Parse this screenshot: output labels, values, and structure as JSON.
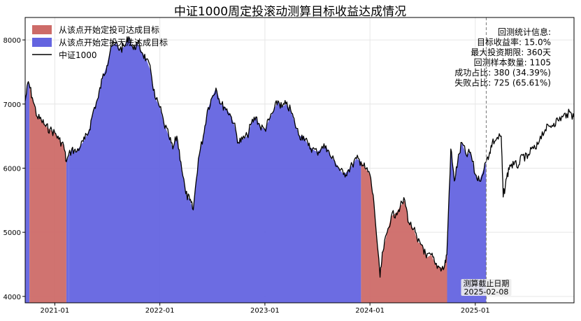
{
  "chart_data": {
    "type": "area",
    "title": "中证1000周定投滚动测算目标收益达成情况",
    "xlabel": "",
    "ylabel": "",
    "ylim": [
      3900,
      8350
    ],
    "xlim": [
      "2020-09-20",
      "2025-12-10"
    ],
    "x_ticks": [
      "2021-01",
      "2022-01",
      "2023-01",
      "2024-01",
      "2025-01"
    ],
    "y_ticks": [
      4000,
      5000,
      6000,
      7000,
      8000
    ],
    "grid": true,
    "legend": {
      "placement": "top-left",
      "items": [
        {
          "label": "从该点开始定投可达成目标",
          "color": "#cd6b68",
          "kind": "patch"
        },
        {
          "label": "从该点开始定投无法达成目标",
          "color": "#6464e0",
          "kind": "patch"
        },
        {
          "label": "中证1000",
          "color": "#000000",
          "kind": "line"
        }
      ]
    },
    "info_box": {
      "lines": [
        "回测统计信息:",
        "目标收益率: 15.0%",
        "最大投资期限: 360天",
        "回测样本数量: 1105",
        "成功占比: 380 (34.39%)",
        "失败占比: 725 (65.61%)"
      ]
    },
    "cutoff": {
      "date": "2025-02-08",
      "label": "测算截止日期",
      "date_label": "2025-02-08"
    },
    "colors": {
      "success": "#cd6b68",
      "fail": "#6464e0",
      "line": "#000000"
    },
    "fill_regions": [
      {
        "start": "2020-09-20",
        "end": "2020-10-05",
        "result": "fail"
      },
      {
        "start": "2020-10-05",
        "end": "2021-02-10",
        "result": "success"
      },
      {
        "start": "2021-02-10",
        "end": "2021-02-18",
        "result": "fail"
      },
      {
        "start": "2021-02-18",
        "end": "2023-12-01",
        "result": "fail"
      },
      {
        "start": "2023-12-01",
        "end": "2024-09-25",
        "result": "success"
      },
      {
        "start": "2024-09-25",
        "end": "2025-02-08",
        "result": "fail"
      }
    ],
    "series": [
      {
        "name": "中证1000",
        "x": [
          "2020-09-20",
          "2020-10-01",
          "2020-10-15",
          "2020-11-01",
          "2020-11-15",
          "2020-12-01",
          "2020-12-15",
          "2021-01-01",
          "2021-01-15",
          "2021-02-01",
          "2021-02-10",
          "2021-03-01",
          "2021-03-15",
          "2021-04-01",
          "2021-04-15",
          "2021-05-01",
          "2021-05-15",
          "2021-06-01",
          "2021-06-15",
          "2021-07-01",
          "2021-07-15",
          "2021-08-01",
          "2021-08-15",
          "2021-09-01",
          "2021-09-15",
          "2021-10-01",
          "2021-10-15",
          "2021-11-01",
          "2021-11-15",
          "2021-12-01",
          "2021-12-15",
          "2022-01-01",
          "2022-01-15",
          "2022-02-01",
          "2022-02-15",
          "2022-03-01",
          "2022-03-15",
          "2022-04-01",
          "2022-04-15",
          "2022-04-27",
          "2022-05-15",
          "2022-06-01",
          "2022-06-15",
          "2022-07-01",
          "2022-07-15",
          "2022-08-01",
          "2022-08-15",
          "2022-09-01",
          "2022-09-15",
          "2022-10-01",
          "2022-10-15",
          "2022-11-01",
          "2022-11-15",
          "2022-12-01",
          "2022-12-15",
          "2023-01-01",
          "2023-01-15",
          "2023-02-01",
          "2023-02-15",
          "2023-03-01",
          "2023-03-15",
          "2023-04-01",
          "2023-04-15",
          "2023-05-01",
          "2023-05-15",
          "2023-06-01",
          "2023-06-15",
          "2023-07-01",
          "2023-07-15",
          "2023-08-01",
          "2023-08-15",
          "2023-09-01",
          "2023-09-15",
          "2023-10-01",
          "2023-10-15",
          "2023-11-01",
          "2023-11-15",
          "2023-12-01",
          "2023-12-15",
          "2024-01-01",
          "2024-01-15",
          "2024-02-05",
          "2024-02-15",
          "2024-03-01",
          "2024-03-15",
          "2024-04-01",
          "2024-04-15",
          "2024-05-01",
          "2024-05-15",
          "2024-06-01",
          "2024-06-15",
          "2024-07-01",
          "2024-07-15",
          "2024-08-01",
          "2024-08-15",
          "2024-09-01",
          "2024-09-15",
          "2024-09-24",
          "2024-10-08",
          "2024-10-20",
          "2024-11-01",
          "2024-11-15",
          "2024-12-01",
          "2024-12-15",
          "2025-01-01",
          "2025-01-15",
          "2025-02-08",
          "2025-02-20",
          "2025-03-01",
          "2025-03-15",
          "2025-04-01",
          "2025-04-08",
          "2025-04-20",
          "2025-05-01",
          "2025-05-15",
          "2025-06-01",
          "2025-06-15",
          "2025-07-01",
          "2025-07-15",
          "2025-08-01",
          "2025-08-15",
          "2025-09-01",
          "2025-09-15",
          "2025-10-01",
          "2025-10-15",
          "2025-11-01",
          "2025-11-15",
          "2025-12-01",
          "2025-12-08"
        ],
        "values": [
          7050,
          7350,
          7100,
          6800,
          6750,
          6650,
          6600,
          6550,
          6450,
          6350,
          6100,
          6300,
          6250,
          6350,
          6450,
          6600,
          6900,
          7100,
          7400,
          7600,
          7900,
          7950,
          7850,
          7900,
          8050,
          7850,
          7950,
          7800,
          7700,
          7500,
          7100,
          6950,
          6700,
          6500,
          6300,
          6500,
          6100,
          5600,
          5500,
          5350,
          6150,
          6500,
          6900,
          7100,
          7250,
          7000,
          6950,
          6850,
          6700,
          6400,
          6450,
          6500,
          6700,
          6800,
          6650,
          6600,
          6750,
          6900,
          7050,
          6950,
          7000,
          6900,
          6700,
          6500,
          6500,
          6350,
          6300,
          6250,
          6300,
          6350,
          6200,
          6100,
          6000,
          5900,
          5950,
          6050,
          6150,
          6100,
          6000,
          5900,
          5450,
          4300,
          4700,
          5000,
          5250,
          5300,
          5400,
          5500,
          5150,
          5050,
          4850,
          4800,
          4600,
          4650,
          4500,
          4450,
          4450,
          4650,
          6300,
          5800,
          6100,
          6400,
          6200,
          6250,
          5900,
          5800,
          6100,
          6250,
          6400,
          6450,
          6500,
          5550,
          5850,
          6050,
          6050,
          6050,
          6200,
          6150,
          6300,
          6300,
          6500,
          6600,
          6650,
          6700,
          6750,
          6800,
          6850,
          6850,
          6800
        ]
      }
    ]
  }
}
